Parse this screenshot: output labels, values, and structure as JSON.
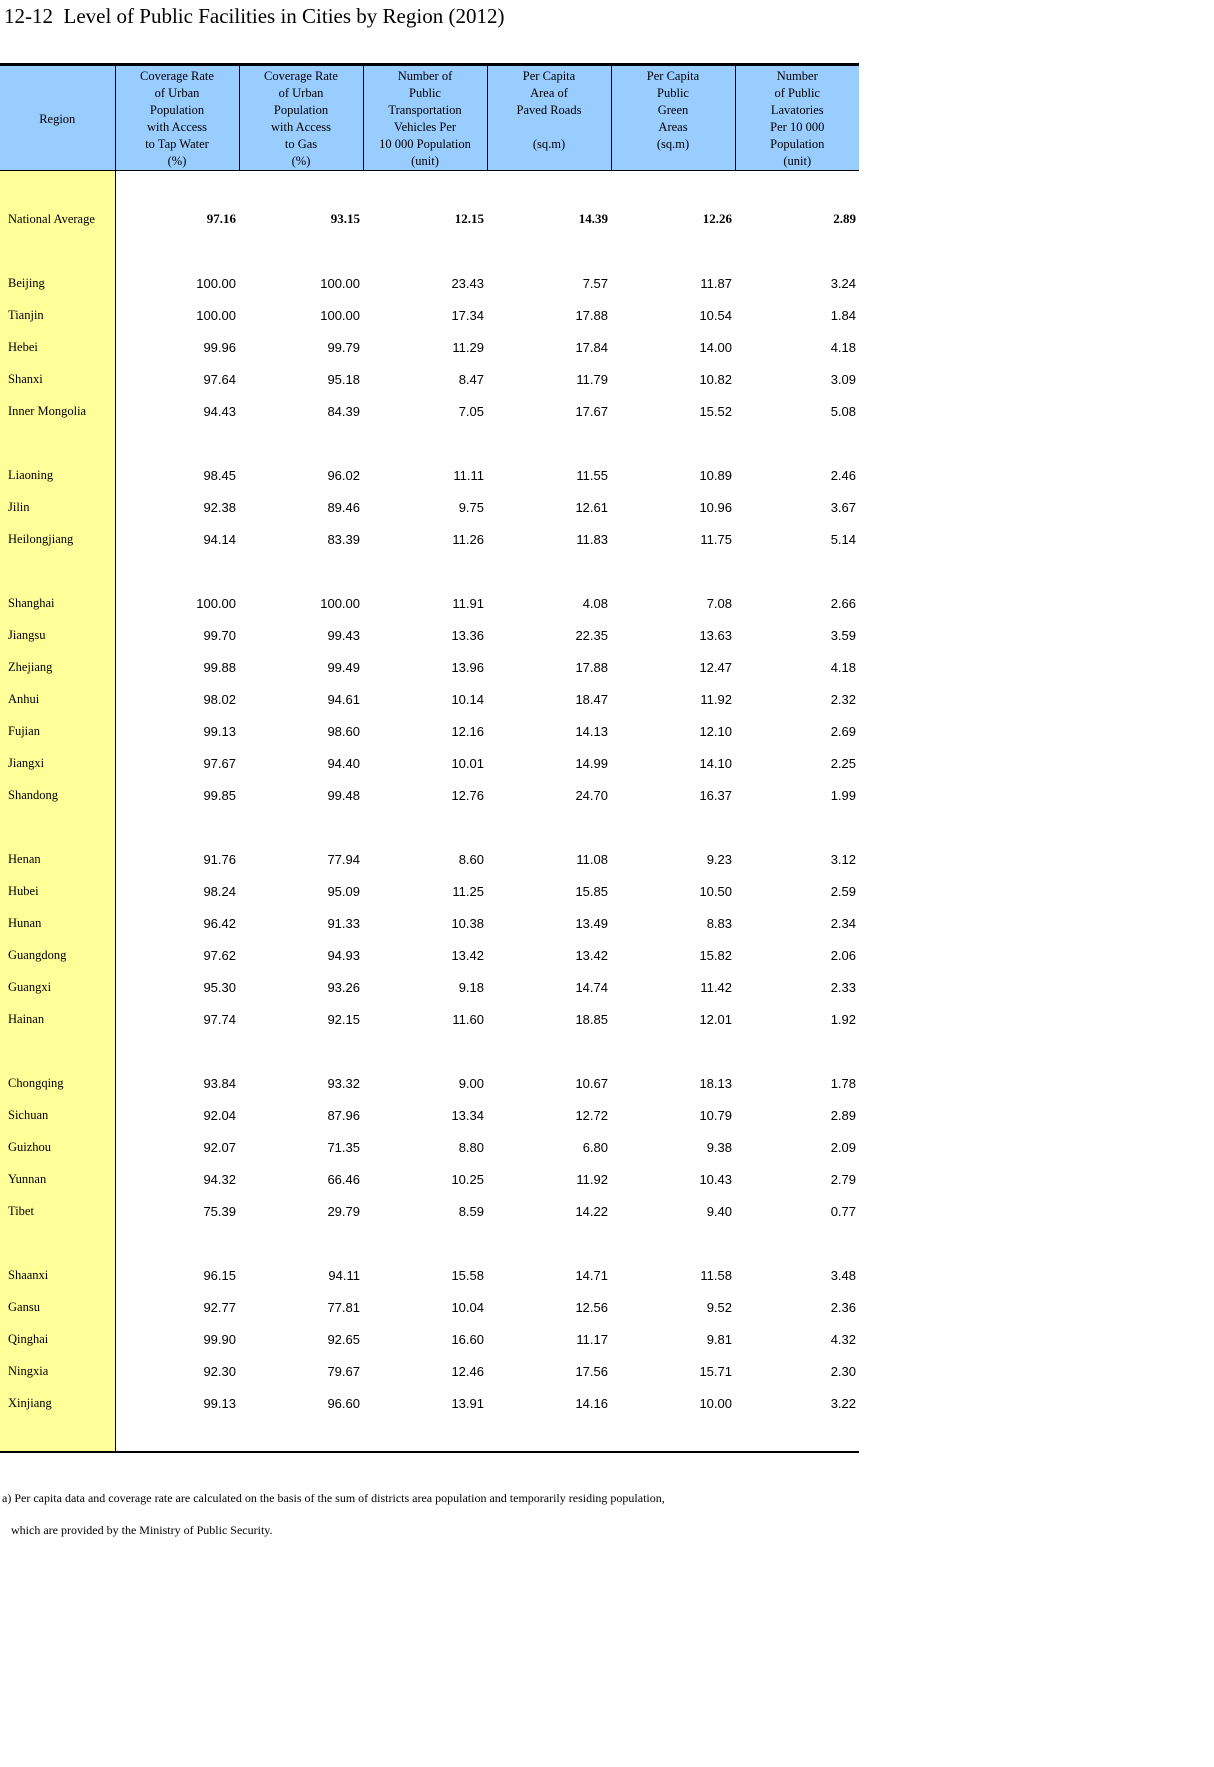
{
  "title": "12-12  Level of Public Facilities in Cities by Region (2012)",
  "headers": [
    [
      "Region"
    ],
    [
      "Coverage Rate",
      "of Urban",
      "Population",
      "with Access",
      "to Tap Water",
      "(%)"
    ],
    [
      "Coverage Rate",
      "of Urban",
      "Population",
      "with Access",
      "to Gas",
      "(%)"
    ],
    [
      "Number of",
      "Public",
      "Transportation",
      "Vehicles Per",
      "10 000 Population",
      "(unit)"
    ],
    [
      "Per Capita",
      "Area of",
      "Paved Roads",
      "",
      "(sq.m)"
    ],
    [
      "Per Capita",
      "Public",
      "Green",
      "Areas",
      "(sq.m)"
    ],
    [
      "Number",
      "of Public",
      "Lavatories",
      "Per 10 000",
      "Population",
      "(unit)"
    ]
  ],
  "groups": [
    [
      [
        "National Average",
        "97.16",
        "93.15",
        "12.15",
        "14.39",
        "12.26",
        "2.89"
      ]
    ],
    [
      [
        "Beijing",
        "100.00",
        "100.00",
        "23.43",
        "7.57",
        "11.87",
        "3.24"
      ],
      [
        "Tianjin",
        "100.00",
        "100.00",
        "17.34",
        "17.88",
        "10.54",
        "1.84"
      ],
      [
        "Hebei",
        "99.96",
        "99.79",
        "11.29",
        "17.84",
        "14.00",
        "4.18"
      ],
      [
        "Shanxi",
        "97.64",
        "95.18",
        "8.47",
        "11.79",
        "10.82",
        "3.09"
      ],
      [
        "Inner Mongolia",
        "94.43",
        "84.39",
        "7.05",
        "17.67",
        "15.52",
        "5.08"
      ]
    ],
    [
      [
        "Liaoning",
        "98.45",
        "96.02",
        "11.11",
        "11.55",
        "10.89",
        "2.46"
      ],
      [
        "Jilin",
        "92.38",
        "89.46",
        "9.75",
        "12.61",
        "10.96",
        "3.67"
      ],
      [
        "Heilongjiang",
        "94.14",
        "83.39",
        "11.26",
        "11.83",
        "11.75",
        "5.14"
      ]
    ],
    [
      [
        "Shanghai",
        "100.00",
        "100.00",
        "11.91",
        "4.08",
        "7.08",
        "2.66"
      ],
      [
        "Jiangsu",
        "99.70",
        "99.43",
        "13.36",
        "22.35",
        "13.63",
        "3.59"
      ],
      [
        "Zhejiang",
        "99.88",
        "99.49",
        "13.96",
        "17.88",
        "12.47",
        "4.18"
      ],
      [
        "Anhui",
        "98.02",
        "94.61",
        "10.14",
        "18.47",
        "11.92",
        "2.32"
      ],
      [
        "Fujian",
        "99.13",
        "98.60",
        "12.16",
        "14.13",
        "12.10",
        "2.69"
      ],
      [
        "Jiangxi",
        "97.67",
        "94.40",
        "10.01",
        "14.99",
        "14.10",
        "2.25"
      ],
      [
        "Shandong",
        "99.85",
        "99.48",
        "12.76",
        "24.70",
        "16.37",
        "1.99"
      ]
    ],
    [
      [
        "Henan",
        "91.76",
        "77.94",
        "8.60",
        "11.08",
        "9.23",
        "3.12"
      ],
      [
        "Hubei",
        "98.24",
        "95.09",
        "11.25",
        "15.85",
        "10.50",
        "2.59"
      ],
      [
        "Hunan",
        "96.42",
        "91.33",
        "10.38",
        "13.49",
        "8.83",
        "2.34"
      ],
      [
        "Guangdong",
        "97.62",
        "94.93",
        "13.42",
        "13.42",
        "15.82",
        "2.06"
      ],
      [
        "Guangxi",
        "95.30",
        "93.26",
        "9.18",
        "14.74",
        "11.42",
        "2.33"
      ],
      [
        "Hainan",
        "97.74",
        "92.15",
        "11.60",
        "18.85",
        "12.01",
        "1.92"
      ]
    ],
    [
      [
        "Chongqing",
        "93.84",
        "93.32",
        "9.00",
        "10.67",
        "18.13",
        "1.78"
      ],
      [
        "Sichuan",
        "92.04",
        "87.96",
        "13.34",
        "12.72",
        "10.79",
        "2.89"
      ],
      [
        "Guizhou",
        "92.07",
        "71.35",
        "8.80",
        "6.80",
        "9.38",
        "2.09"
      ],
      [
        "Yunnan",
        "94.32",
        "66.46",
        "10.25",
        "11.92",
        "10.43",
        "2.79"
      ],
      [
        "Tibet",
        "75.39",
        "29.79",
        "8.59",
        "14.22",
        "9.40",
        "0.77"
      ]
    ],
    [
      [
        "Shaanxi",
        "96.15",
        "94.11",
        "15.58",
        "14.71",
        "11.58",
        "3.48"
      ],
      [
        "Gansu",
        "92.77",
        "77.81",
        "10.04",
        "12.56",
        "9.52",
        "2.36"
      ],
      [
        "Qinghai",
        "99.90",
        "92.65",
        "16.60",
        "11.17",
        "9.81",
        "4.32"
      ],
      [
        "Ningxia",
        "92.30",
        "79.67",
        "12.46",
        "17.56",
        "15.71",
        "2.30"
      ],
      [
        "Xinjiang",
        "99.13",
        "96.60",
        "13.91",
        "14.16",
        "10.00",
        "3.22"
      ]
    ]
  ],
  "footnotes": [
    "a) Per capita data and coverage rate are calculated on the basis of the sum of districts area population and temporarily residing population,",
    "   which are provided by the Ministry of Public Security."
  ],
  "colors": {
    "header_bg": "#99ccff",
    "region_bg": "#ffff99"
  }
}
